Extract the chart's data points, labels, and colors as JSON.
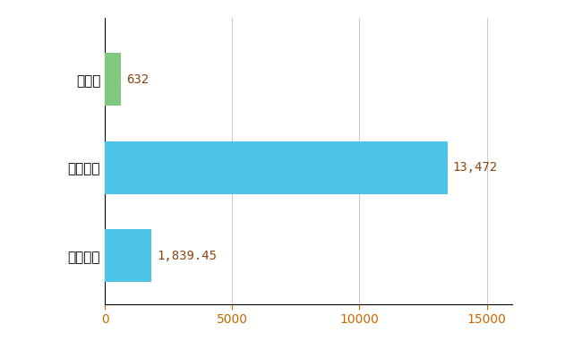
{
  "categories": [
    "全国平均",
    "全国最大",
    "徳島県"
  ],
  "values": [
    1839.45,
    13472,
    632
  ],
  "bar_colors": [
    "#4dc3e8",
    "#4dc3e8",
    "#7fc97f"
  ],
  "labels": [
    "1,839.45",
    "13,472",
    "632"
  ],
  "title": "",
  "xlim": [
    0,
    16000
  ],
  "xticks": [
    0,
    5000,
    10000,
    15000
  ],
  "background_color": "#ffffff",
  "grid_color": "#cccccc",
  "label_color": "#8B4513",
  "tick_color": "#cc6600"
}
